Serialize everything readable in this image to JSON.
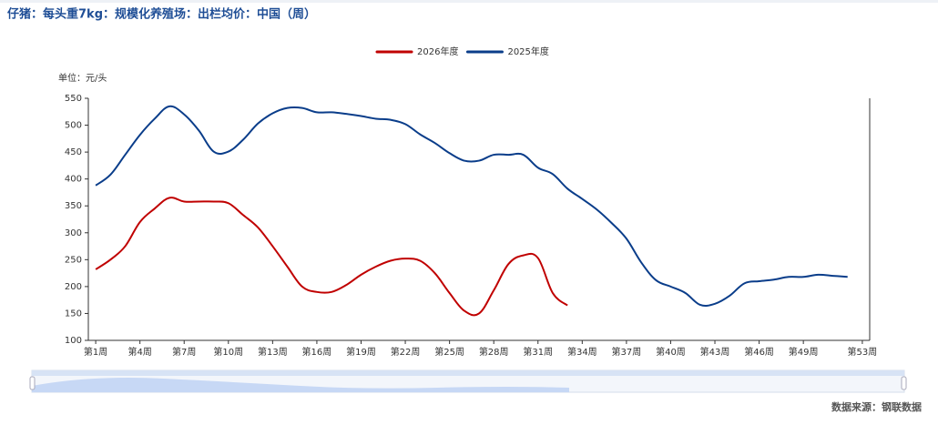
{
  "chart_data": {
    "type": "line",
    "title": "仔猪：每头重7kg：规模化养殖场：出栏均价：中国（周）",
    "y_label": "单位：元/头",
    "source": "数据来源：钢联数据",
    "categories": [
      "第1周",
      null,
      null,
      "第4周",
      null,
      null,
      "第7周",
      null,
      null,
      "第10周",
      null,
      null,
      "第13周",
      null,
      null,
      "第16周",
      null,
      null,
      "第19周",
      null,
      null,
      "第22周",
      null,
      null,
      "第25周",
      null,
      null,
      "第28周",
      null,
      null,
      "第31周",
      null,
      null,
      "第34周",
      null,
      null,
      "第37周",
      null,
      null,
      "第40周",
      null,
      null,
      "第43周",
      null,
      null,
      "第46周",
      null,
      null,
      "第49周",
      null,
      null,
      null,
      "第53周"
    ],
    "series": [
      {
        "name": "2026年度",
        "color": "#c00000",
        "values": [
          232,
          250,
          275,
          320,
          345,
          365,
          358,
          358,
          358,
          355,
          333,
          310,
          275,
          237,
          200,
          190,
          190,
          203,
          222,
          237,
          248,
          252,
          248,
          225,
          188,
          155,
          150,
          193,
          242,
          258,
          253,
          188,
          165,
          null,
          null,
          null,
          null,
          null,
          null,
          null,
          null,
          null,
          null,
          null,
          null,
          null,
          null,
          null,
          null,
          null,
          null,
          null,
          null
        ]
      },
      {
        "name": "2025年度",
        "color": "#0a3d8a",
        "values": [
          388,
          408,
          445,
          482,
          512,
          535,
          520,
          490,
          451,
          451,
          473,
          503,
          522,
          532,
          532,
          524,
          524,
          521,
          517,
          512,
          510,
          502,
          483,
          467,
          448,
          434,
          434,
          445,
          445,
          445,
          421,
          409,
          382,
          363,
          343,
          318,
          289,
          245,
          212,
          200,
          188,
          166,
          168,
          183,
          206,
          210,
          213,
          218,
          218,
          222,
          220,
          218,
          null
        ]
      }
    ],
    "ylim": [
      100,
      550
    ],
    "yticks": [
      100,
      150,
      200,
      250,
      300,
      350,
      400,
      450,
      500,
      550
    ],
    "grid": false,
    "legend": "top"
  }
}
